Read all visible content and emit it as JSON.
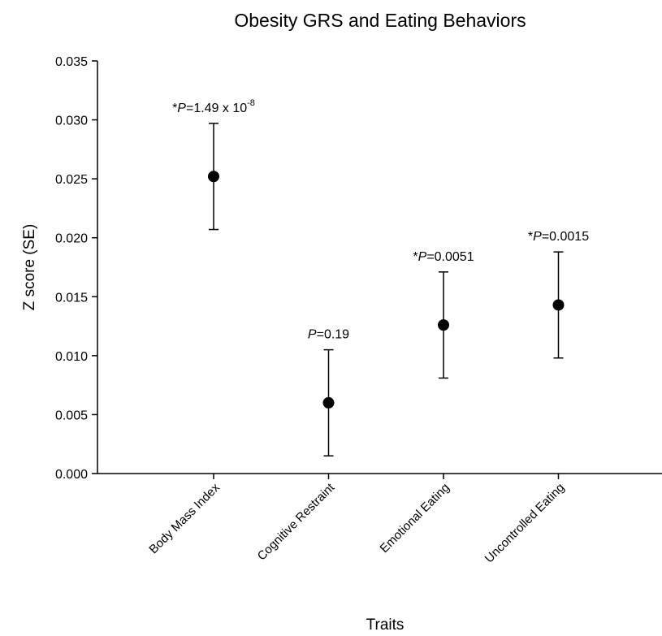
{
  "chart_data": {
    "type": "scatter",
    "title": "Obesity GRS and Eating Behaviors",
    "xlabel": "Traits",
    "ylabel": "Z score (SE)",
    "ylim": [
      0,
      0.035
    ],
    "yticks": [
      "0.000",
      "0.005",
      "0.010",
      "0.015",
      "0.020",
      "0.025",
      "0.030",
      "0.035"
    ],
    "categories": [
      "Body Mass Index",
      "Cognitive Restraint",
      "Emotional Eating",
      "Uncontrolled Eating"
    ],
    "values": [
      0.0252,
      0.006,
      0.0126,
      0.0143
    ],
    "error_low": [
      0.0207,
      0.0015,
      0.0081,
      0.0098
    ],
    "error_high": [
      0.0297,
      0.0105,
      0.0171,
      0.0188
    ],
    "annotations": [
      {
        "prefix": "*",
        "italic": "P",
        "text": "=1.49 x 10",
        "sup": "-8"
      },
      {
        "prefix": "",
        "italic": "P",
        "text": "=0.19",
        "sup": ""
      },
      {
        "prefix": "*",
        "italic": "P",
        "text": "=0.0051",
        "sup": ""
      },
      {
        "prefix": "*",
        "italic": "P",
        "text": "=0.0015",
        "sup": ""
      }
    ],
    "grid": false,
    "legend": "none"
  }
}
